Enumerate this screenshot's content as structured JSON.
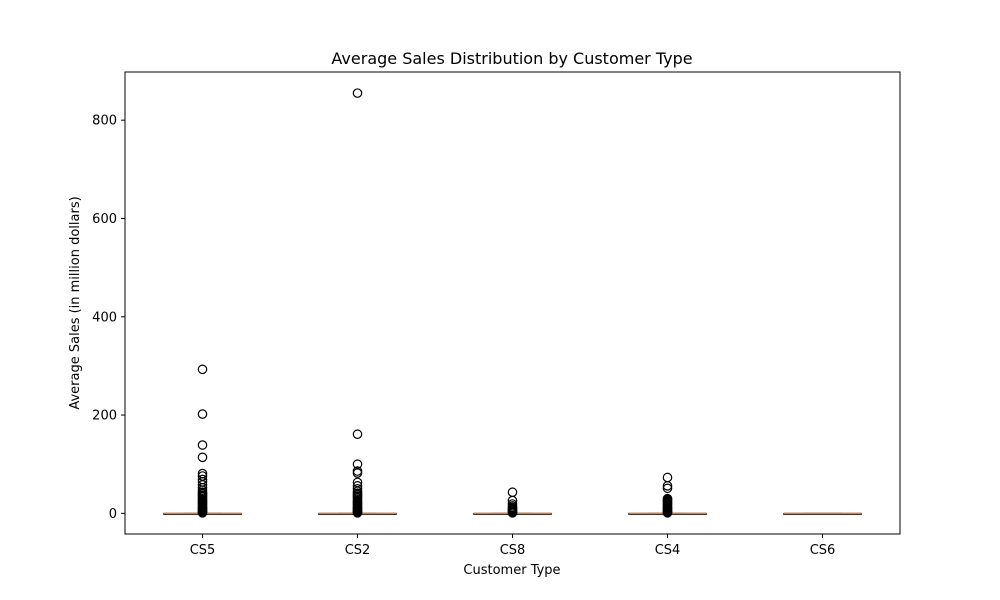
{
  "chart_data": {
    "type": "boxplot",
    "title": "Average Sales Distribution by Customer Type",
    "xlabel": "Customer Type",
    "ylabel": "Average Sales (in million dollars)",
    "ylim": [
      -42,
      898
    ],
    "yticks": [
      0,
      200,
      400,
      600,
      800
    ],
    "grid": false,
    "legend": "none",
    "colors": {
      "median": "#e07b39",
      "box": "#000000",
      "outlier": "#000000"
    },
    "categories": [
      "CS5",
      "CS2",
      "CS8",
      "CS4",
      "CS6"
    ],
    "boxes": [
      {
        "category": "CS5",
        "whisker_low": 0,
        "q1": 0,
        "median": 0,
        "q3": 0,
        "whisker_high": 0,
        "outliers": [
          293,
          202,
          139,
          114,
          81,
          76,
          69,
          64,
          58,
          52,
          47,
          43,
          40,
          37,
          34,
          31,
          28,
          26,
          24,
          22,
          20,
          18,
          16,
          14,
          12,
          10,
          8,
          6,
          4,
          3,
          2,
          1
        ]
      },
      {
        "category": "CS2",
        "whisker_low": 0,
        "q1": 0,
        "median": 0,
        "q3": 0,
        "whisker_high": 0,
        "outliers": [
          855,
          161,
          100,
          86,
          82,
          63,
          56,
          50,
          45,
          41,
          38,
          35,
          32,
          29,
          26,
          24,
          22,
          20,
          18,
          16,
          14,
          12,
          10,
          8,
          6,
          4,
          3,
          2,
          1
        ]
      },
      {
        "category": "CS8",
        "whisker_low": 0,
        "q1": 0,
        "median": 0,
        "q3": 0,
        "whisker_high": 0,
        "outliers": [
          43,
          26,
          19,
          15,
          12,
          10,
          8,
          6,
          4,
          3,
          2,
          1
        ]
      },
      {
        "category": "CS4",
        "whisker_low": 0,
        "q1": 0,
        "median": 0,
        "q3": 0,
        "whisker_high": 0,
        "outliers": [
          73,
          56,
          51,
          30,
          28,
          26,
          24,
          22,
          20,
          18,
          16,
          14,
          12,
          10,
          8,
          6,
          4,
          3,
          2,
          1
        ]
      },
      {
        "category": "CS6",
        "whisker_low": 0,
        "q1": 0,
        "median": 0,
        "q3": 0,
        "whisker_high": 0,
        "outliers": []
      }
    ]
  }
}
